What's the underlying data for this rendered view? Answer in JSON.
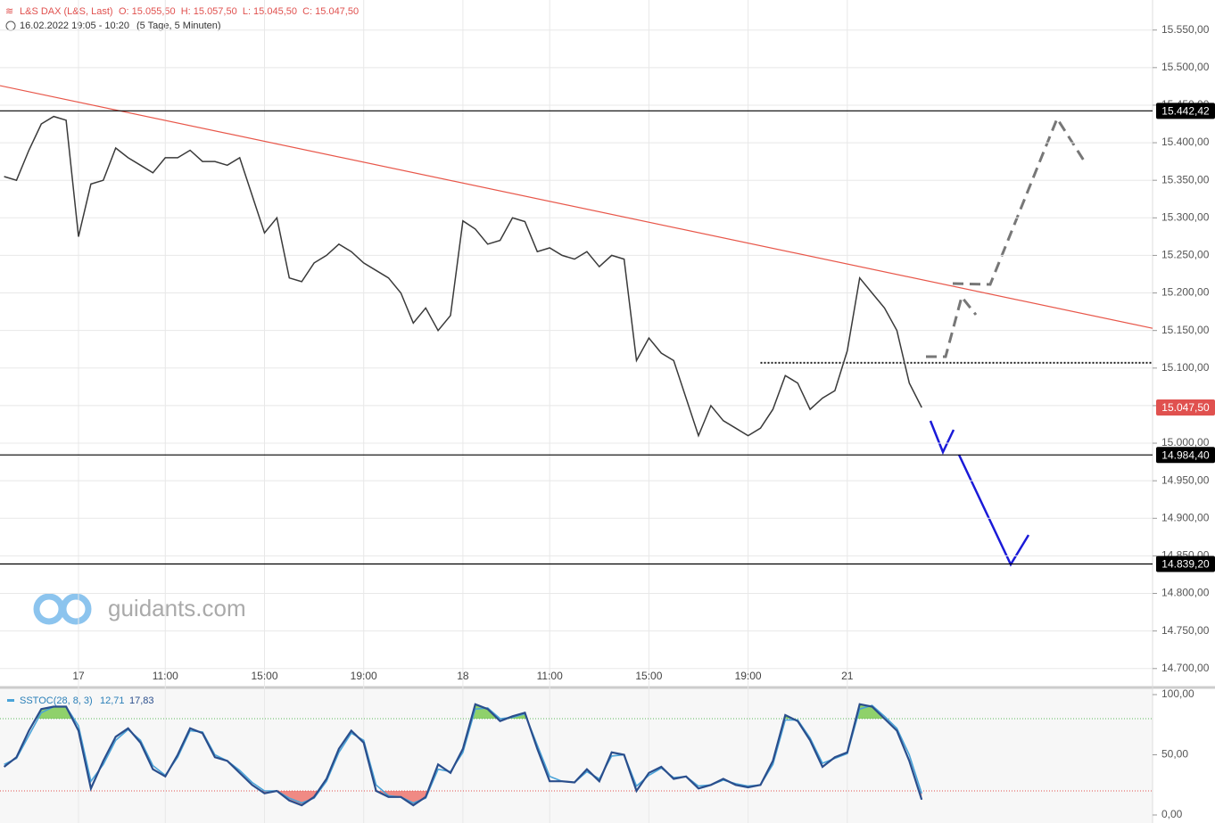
{
  "header": {
    "instrument": "L&S DAX (L&S, Last)",
    "ohlc": "O: 15.055,50  H: 15.057,50  L: 15.045,50  C: 15.047,50",
    "range": "16.02.2022 19:05 - 10:20",
    "period": "(5 Tage, 5 Minuten)"
  },
  "logo": "guidants.com",
  "chart_data": [
    {
      "type": "line",
      "color": "#3a3a3a",
      "categories": [
        null,
        null,
        null,
        null,
        null,
        null,
        "17",
        null,
        null,
        null,
        null,
        null,
        null,
        "11:00",
        null,
        null,
        null,
        null,
        null,
        null,
        null,
        "15:00",
        null,
        null,
        null,
        null,
        null,
        null,
        null,
        "19:00",
        null,
        null,
        null,
        null,
        null,
        null,
        null,
        "18",
        null,
        null,
        null,
        null,
        null,
        null,
        "11:00",
        null,
        null,
        null,
        null,
        null,
        null,
        null,
        "15:00",
        null,
        null,
        null,
        null,
        null,
        null,
        null,
        "19:00",
        null,
        null,
        null,
        null,
        null,
        null,
        null,
        "21",
        null,
        null,
        null,
        null,
        null,
        null
      ],
      "values": [
        15355,
        15350,
        15390,
        15425,
        15435,
        15430,
        15275,
        15345,
        15350,
        15393,
        15380,
        15370,
        15360,
        15380,
        15380,
        15390,
        15375,
        15375,
        15370,
        15380,
        15330,
        15280,
        15300,
        15220,
        15215,
        15240,
        15250,
        15265,
        15255,
        15240,
        15230,
        15220,
        15200,
        15160,
        15180,
        15150,
        15170,
        15296,
        15285,
        15265,
        15270,
        15300,
        15295,
        15255,
        15260,
        15250,
        15245,
        15255,
        15235,
        15250,
        15245,
        15110,
        15140,
        15120,
        15110,
        15060,
        15010,
        15050,
        15030,
        15020,
        15010,
        15020,
        15045,
        15090,
        15080,
        15045,
        15060,
        15070,
        15123,
        15220,
        15200,
        15180,
        15150,
        15080,
        15047.5
      ],
      "ylim": [
        14676,
        15590
      ],
      "yticks": [
        {
          "value": 14700,
          "label": "14.700,00"
        },
        {
          "value": 14750,
          "label": "14.750,00"
        },
        {
          "value": 14800,
          "label": "14.800,00"
        },
        {
          "value": 14850,
          "label": "14.850,00"
        },
        {
          "value": 14900,
          "label": "14.900,00"
        },
        {
          "value": 14950,
          "label": "14.950,00"
        },
        {
          "value": 15000,
          "label": "15.000,00"
        },
        {
          "value": 15050,
          "label": "15.050,00"
        },
        {
          "value": 15100,
          "label": "15.100,00"
        },
        {
          "value": 15150,
          "label": "15.150,00"
        },
        {
          "value": 15200,
          "label": "15.200,00"
        },
        {
          "value": 15250,
          "label": "15.250,00"
        },
        {
          "value": 15300,
          "label": "15.300,00"
        },
        {
          "value": 15350,
          "label": "15.350,00"
        },
        {
          "value": 15400,
          "label": "15.400,00"
        },
        {
          "value": 15450,
          "label": "15.450,00"
        },
        {
          "value": 15500,
          "label": "15.500,00"
        },
        {
          "value": 15550,
          "label": "15.550,00"
        }
      ],
      "grid": true,
      "levels": [
        {
          "value": 15442.42,
          "label": "15.442,42"
        },
        {
          "value": 14984.4,
          "label": "14.984,40"
        },
        {
          "value": 14839.2,
          "label": "14.839,20"
        }
      ],
      "last_price": {
        "value": 15047.5,
        "label": "15.047,50",
        "color": "#e0514f"
      },
      "trendline": [
        15476,
        15153
      ],
      "trendline_color": "#e8574a",
      "dotted_level": 15107
    },
    {
      "type": "line",
      "title": "SSTOC(28, 8, 3)",
      "series": [
        {
          "color": "#2a4e8c",
          "values": [
            40,
            48,
            70,
            88,
            90,
            90,
            70,
            22,
            45,
            65,
            72,
            60,
            38,
            32,
            50,
            72,
            68,
            48,
            45,
            35,
            25,
            18,
            20,
            12,
            8,
            15,
            30,
            55,
            70,
            60,
            20,
            15,
            15,
            8,
            15,
            42,
            35,
            55,
            92,
            88,
            78,
            82,
            85,
            55,
            28,
            28,
            27,
            38,
            28,
            52,
            50,
            20,
            35,
            40,
            30,
            32,
            22,
            25,
            30,
            25,
            23,
            25,
            45,
            83,
            78,
            62,
            40,
            48,
            52,
            92,
            90,
            80,
            70,
            45,
            12.71
          ]
        },
        {
          "color": "#4aa3d8",
          "values": [
            42,
            47,
            66,
            85,
            90,
            90,
            74,
            28,
            42,
            62,
            71,
            62,
            41,
            33,
            48,
            70,
            69,
            50,
            45,
            37,
            27,
            20,
            20,
            14,
            10,
            14,
            28,
            52,
            68,
            62,
            25,
            16,
            15,
            10,
            14,
            38,
            36,
            52,
            88,
            89,
            80,
            81,
            84,
            58,
            32,
            28,
            27,
            36,
            30,
            49,
            50,
            24,
            33,
            39,
            31,
            32,
            24,
            25,
            29,
            26,
            24,
            25,
            42,
            79,
            79,
            64,
            43,
            47,
            51,
            88,
            91,
            82,
            72,
            50,
            17.83
          ]
        }
      ],
      "last_value_labels": [
        "12,71",
        "17,83"
      ],
      "ylim": [
        0,
        100
      ],
      "yticks": [
        {
          "value": 0,
          "label": "0,00"
        },
        {
          "value": 50,
          "label": "50,00"
        },
        {
          "value": 100,
          "label": "100,00"
        }
      ],
      "bands": [
        {
          "value": 80,
          "color": "#5cb85c",
          "fill": "#8fd16b"
        },
        {
          "value": 20,
          "color": "#e0514f",
          "fill": "#f08a84"
        }
      ]
    }
  ]
}
